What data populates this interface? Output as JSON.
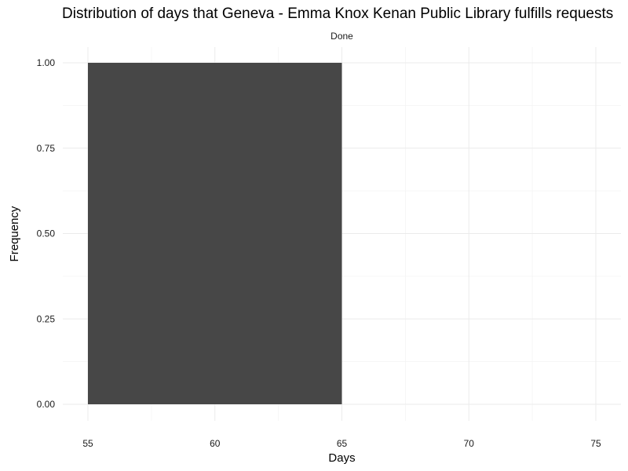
{
  "chart_data": {
    "type": "bar",
    "title": "Distribution of days that Geneva - Emma Knox Kenan Public Library fulfills requests",
    "facet_label": "Done",
    "xlabel": "Days",
    "ylabel": "Frequency",
    "xlim": [
      55,
      76
    ],
    "ylim": [
      0,
      1.08
    ],
    "x_ticks": [
      55,
      60,
      65,
      70,
      75
    ],
    "x_tick_labels": [
      "55",
      "60",
      "65",
      "70",
      "75"
    ],
    "y_ticks": [
      0,
      0.25,
      0.5,
      0.75,
      1.0
    ],
    "y_tick_labels": [
      "0.00",
      "0.25",
      "0.50",
      "0.75",
      "1.00"
    ],
    "bins": [
      {
        "x_start": 55,
        "x_end": 65,
        "value": 1.0
      }
    ],
    "bar_color": "#474747",
    "grid": true,
    "legend": "none"
  }
}
